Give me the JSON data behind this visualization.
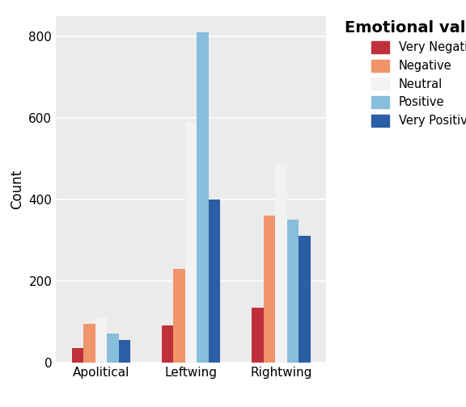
{
  "categories": [
    "Apolitical",
    "Leftwing",
    "Rightwing"
  ],
  "valence_labels": [
    "Very Negative",
    "Negative",
    "Neutral",
    "Positive",
    "Very Positive"
  ],
  "values": {
    "Very Negative": [
      35,
      90,
      135
    ],
    "Negative": [
      95,
      230,
      360
    ],
    "Neutral": [
      110,
      590,
      490
    ],
    "Positive": [
      70,
      810,
      350
    ],
    "Very Positive": [
      55,
      400,
      310
    ]
  },
  "colors": {
    "Very Negative": "#C0303A",
    "Negative": "#F0956A",
    "Neutral": "#F2F2F2",
    "Positive": "#87BEDB",
    "Very Positive": "#2B5FA5"
  },
  "ylabel": "Count",
  "legend_title": "Emotional valence",
  "ylim": [
    0,
    850
  ],
  "yticks": [
    0,
    200,
    400,
    600,
    800
  ],
  "background_color": "#EBEBEB",
  "bar_width": 0.13,
  "title_fontsize": 14,
  "legend_fontsize": 10.5,
  "axis_label_fontsize": 12,
  "tick_fontsize": 11
}
